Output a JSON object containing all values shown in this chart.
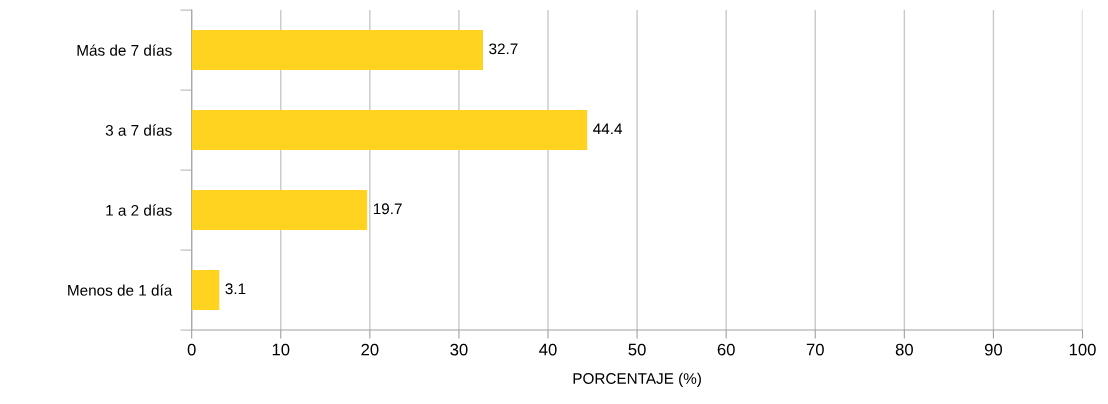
{
  "chart_data": {
    "type": "bar",
    "orientation": "horizontal",
    "xlabel": "PORCENTAJE (%)",
    "categories": [
      "Más de 7 días",
      "3 a 7 días",
      "1 a 2 días",
      "Menos de 1 día"
    ],
    "values": [
      32.7,
      44.4,
      19.7,
      3.1
    ],
    "color": "#ffd320",
    "xlim": [
      0,
      100
    ],
    "xticks": [
      0,
      10,
      20,
      30,
      40,
      50,
      60,
      70,
      80,
      90,
      100
    ],
    "grid": "x",
    "data_labels": true
  }
}
